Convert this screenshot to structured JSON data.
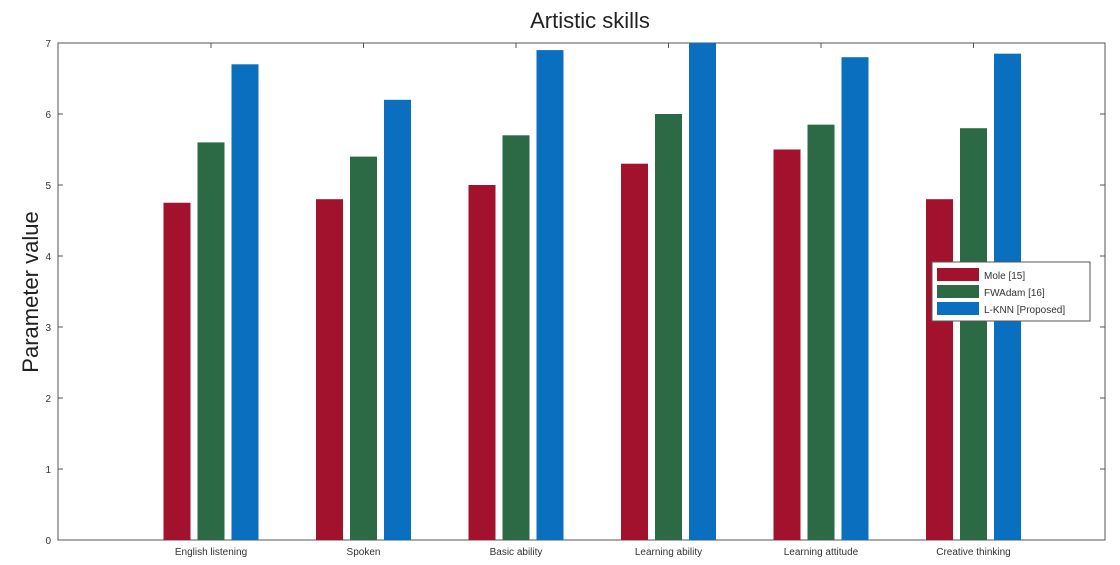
{
  "chart_data": {
    "type": "bar",
    "title": "Artistic skills",
    "xlabel": "",
    "ylabel": "Parameter value",
    "ylim": [
      0,
      7
    ],
    "yticks": [
      0,
      1,
      2,
      3,
      4,
      5,
      6,
      7
    ],
    "grid": false,
    "legend_position": "right",
    "categories": [
      "English listening",
      "Spoken",
      "Basic ability",
      "Learning ability",
      "Learning attitude",
      "Creative thinking"
    ],
    "series": [
      {
        "name": "Mole [15]",
        "color": "#a3122d",
        "values": [
          4.75,
          4.8,
          5.0,
          5.3,
          5.5,
          4.8
        ]
      },
      {
        "name": "FWAdam [16]",
        "color": "#2c6a45",
        "values": [
          5.6,
          5.4,
          5.7,
          6.0,
          5.85,
          5.8
        ]
      },
      {
        "name": "L-KNN [Proposed]",
        "color": "#0a6fbf",
        "values": [
          6.7,
          6.2,
          6.9,
          7.0,
          6.8,
          6.85
        ]
      }
    ]
  }
}
